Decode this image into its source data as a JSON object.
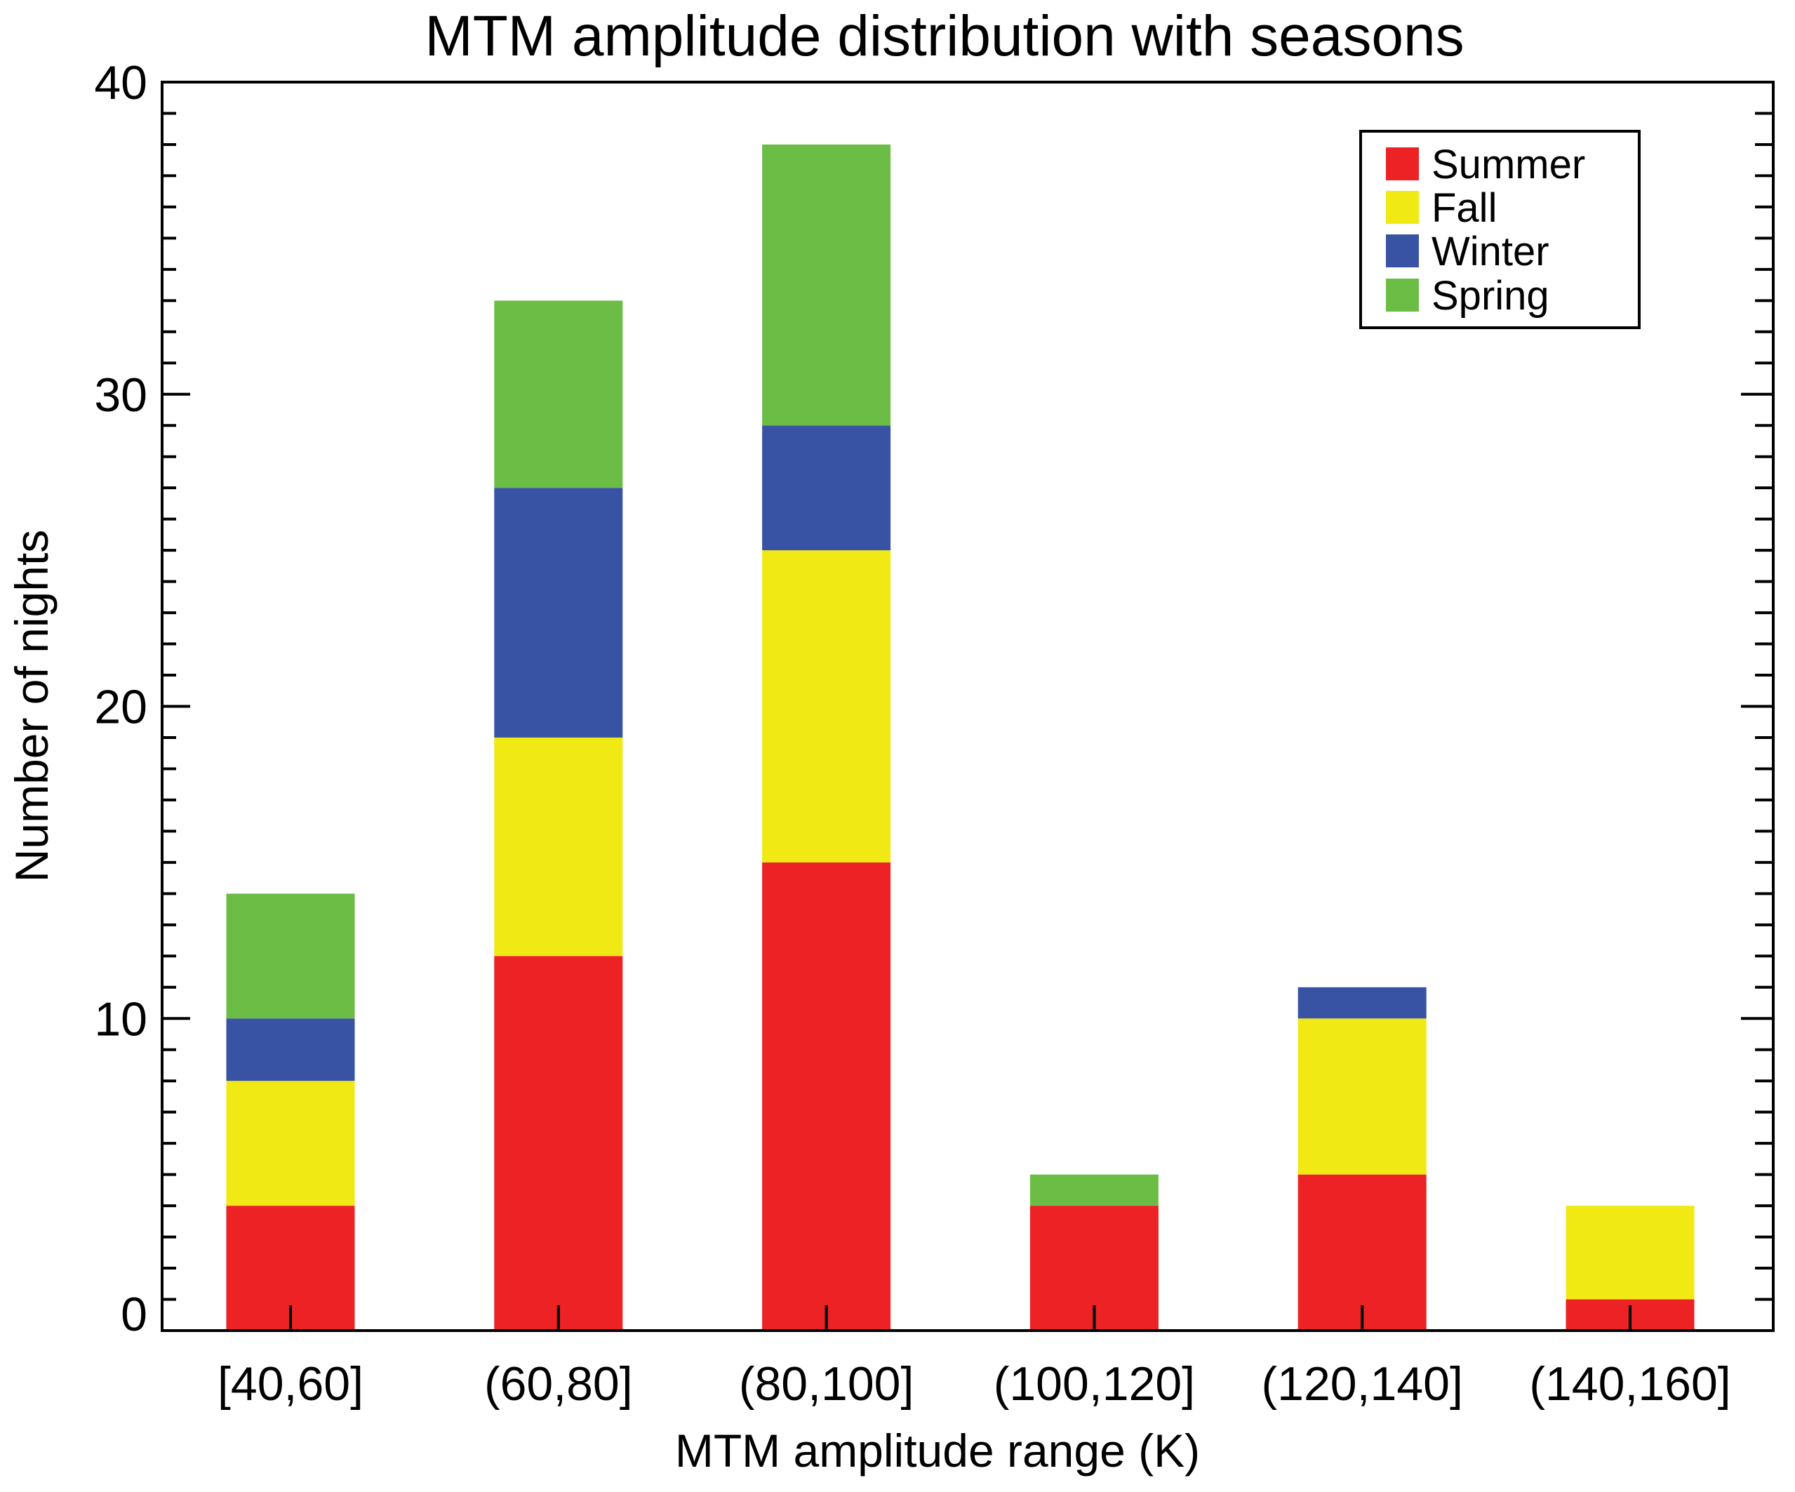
{
  "chart_data": {
    "type": "bar",
    "stacked": true,
    "title": "MTM amplitude distribution with seasons",
    "xlabel": "MTM amplitude range (K)",
    "ylabel": "Number of nights",
    "categories": [
      "[40,60]",
      "(60,80]",
      "(80,100]",
      "(100,120]",
      "(120,140]",
      "(140,160]"
    ],
    "series": [
      {
        "name": "Summer",
        "color": "#ED2224",
        "values": [
          4,
          12,
          15,
          4,
          5,
          1
        ]
      },
      {
        "name": "Fall",
        "color": "#F1E913",
        "values": [
          4,
          7,
          10,
          0,
          5,
          3
        ]
      },
      {
        "name": "Winter",
        "color": "#3953A4",
        "values": [
          2,
          8,
          4,
          0,
          1,
          0
        ]
      },
      {
        "name": "Spring",
        "color": "#6CBD45",
        "values": [
          4,
          6,
          9,
          1,
          0,
          0
        ]
      }
    ],
    "ylim": [
      0,
      40
    ],
    "yticks": [
      0,
      10,
      20,
      30,
      40
    ],
    "yticks_minor_step": 1,
    "grid": false,
    "legend_position": "top-right"
  }
}
